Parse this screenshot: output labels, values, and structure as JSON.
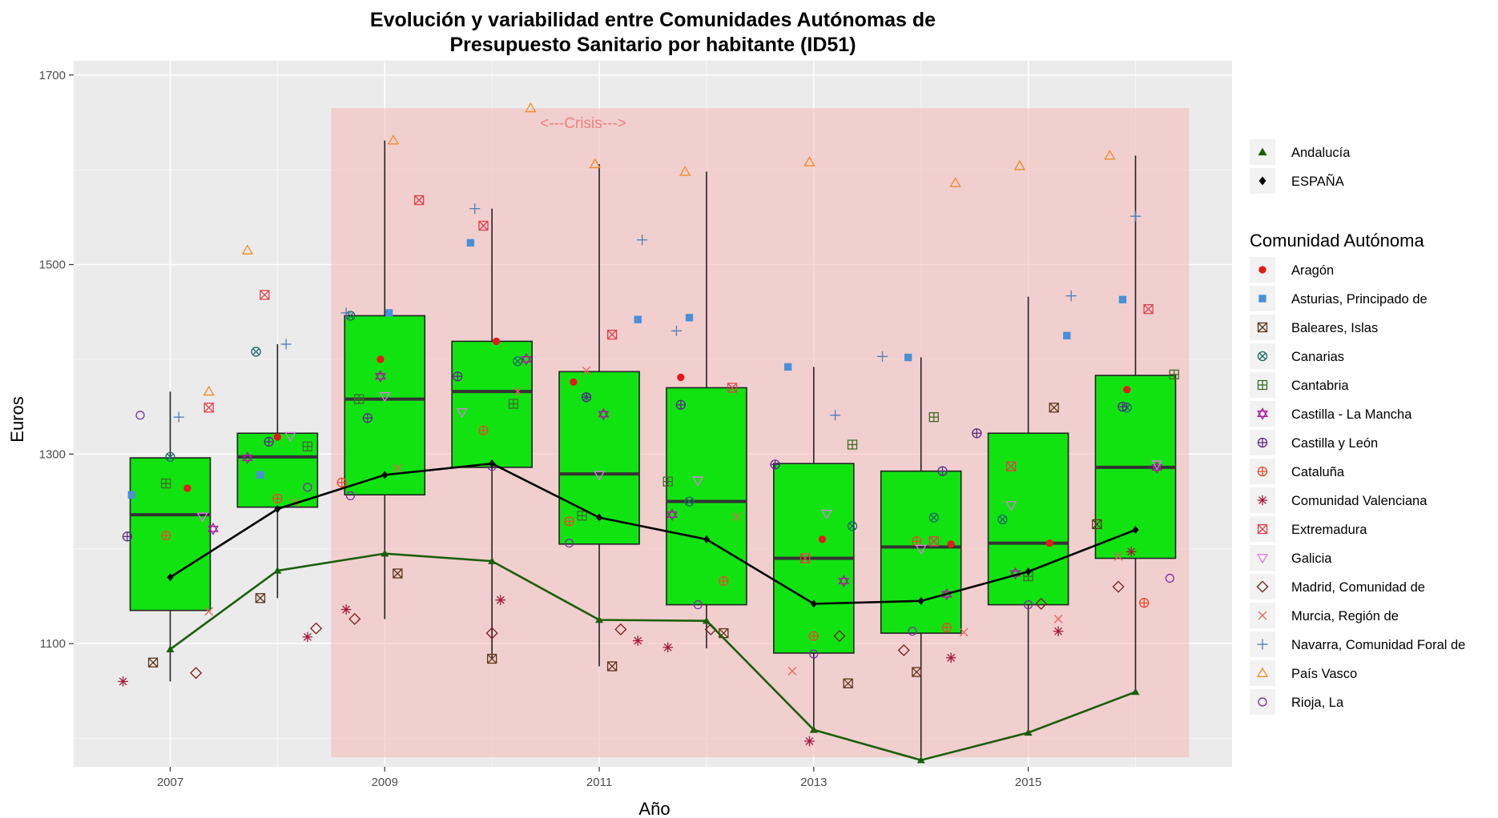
{
  "chart_data": {
    "type": "box",
    "title_lines": [
      "Evolución y variabilidad entre Comunidades Autónomas de",
      "Presupuesto Sanitario por habitante (ID51)"
    ],
    "xlabel": "Año",
    "ylabel": "Euros",
    "x_ticks": [
      2007,
      2009,
      2011,
      2013,
      2015
    ],
    "y_ticks": [
      1100,
      1300,
      1500,
      1700
    ],
    "ylim": [
      970,
      1715
    ],
    "xlim": [
      2006.1,
      2016.9
    ],
    "grid": true,
    "legend_position": "right",
    "colors": {
      "panel": "#ebebeb",
      "grid": "#ffffff",
      "box_fill": "#11e311",
      "crisis_fill": "#f5b8b8",
      "crisis_text": "#f08080",
      "andalucia": "#1b5e0b",
      "espana": "#000000"
    },
    "crisis_band": {
      "x_start": 2008.5,
      "x_end": 2016.5,
      "y_start": 980,
      "y_end": 1665,
      "label": "<---Crisis--->",
      "label_x": 2010.85,
      "label_y": 1650
    },
    "boxes": [
      {
        "year": 2007,
        "whisker_low": 1060,
        "q1": 1135,
        "median": 1236,
        "q3": 1296,
        "whisker_high": 1366
      },
      {
        "year": 2008,
        "whisker_low": 1148,
        "q1": 1244,
        "median": 1297,
        "q3": 1322,
        "whisker_high": 1416
      },
      {
        "year": 2009,
        "whisker_low": 1126,
        "q1": 1257,
        "median": 1358,
        "q3": 1446,
        "whisker_high": 1631
      },
      {
        "year": 2010,
        "whisker_low": 1084,
        "q1": 1286,
        "median": 1366,
        "q3": 1419,
        "whisker_high": 1559
      },
      {
        "year": 2011,
        "whisker_low": 1076,
        "q1": 1205,
        "median": 1279,
        "q3": 1387,
        "whisker_high": 1606
      },
      {
        "year": 2012,
        "whisker_low": 1095,
        "q1": 1141,
        "median": 1250,
        "q3": 1370,
        "whisker_high": 1598
      },
      {
        "year": 2013,
        "whisker_low": 1007,
        "q1": 1090,
        "median": 1190,
        "q3": 1290,
        "whisker_high": 1392
      },
      {
        "year": 2014,
        "whisker_low": 977,
        "q1": 1111,
        "median": 1202,
        "q3": 1282,
        "whisker_high": 1402
      },
      {
        "year": 2015,
        "whisker_low": 1007,
        "q1": 1141,
        "median": 1206,
        "q3": 1322,
        "whisker_high": 1466
      },
      {
        "year": 2016,
        "whisker_low": 1049,
        "q1": 1190,
        "median": 1286,
        "q3": 1383,
        "whisker_high": 1615
      }
    ],
    "lines": [
      {
        "name": "Andalucía",
        "marker": "triangle",
        "x": [
          2007,
          2008,
          2009,
          2010,
          2011,
          2012,
          2013,
          2014,
          2015,
          2016
        ],
        "y": [
          1094,
          1177,
          1195,
          1187,
          1125,
          1124,
          1009,
          977,
          1006,
          1049
        ]
      },
      {
        "name": "ESPAÑA",
        "marker": "diamond",
        "x": [
          2007,
          2008,
          2009,
          2010,
          2011,
          2012,
          2013,
          2014,
          2015,
          2016
        ],
        "y": [
          1170,
          1242,
          1278,
          1290,
          1233,
          1210,
          1142,
          1145,
          1176,
          1220
        ]
      }
    ],
    "legend_lines_items": [
      {
        "label": "Andalucía",
        "shape": "filled-triangle",
        "color": "#1b5e0b"
      },
      {
        "label": "ESPAÑA",
        "shape": "filled-diamond",
        "color": "#000000"
      }
    ],
    "legend_title": "Comunidad Autónoma",
    "series": [
      {
        "name": "Aragón",
        "color": "#e31a1c",
        "shape": "filled-circle",
        "x": [
          2007.16,
          2008.0,
          2008.96,
          2010.04,
          2010.76,
          2011.76,
          2013.08,
          2014.28,
          2015.2,
          2015.92
        ],
        "y": [
          1264,
          1318,
          1400,
          1419,
          1376,
          1381,
          1210,
          1205,
          1206,
          1368
        ]
      },
      {
        "name": "Asturias, Principado de",
        "color": "#4a90d9",
        "shape": "filled-square",
        "x": [
          2006.64,
          2007.84,
          2009.04,
          2009.8,
          2011.36,
          2011.84,
          2012.76,
          2013.88,
          2015.36,
          2015.88
        ],
        "y": [
          1257,
          1278,
          1449,
          1523,
          1442,
          1444,
          1392,
          1402,
          1425,
          1463
        ]
      },
      {
        "name": "Baleares, Islas",
        "color": "#5c3317",
        "shape": "square-x",
        "x": [
          2006.84,
          2007.84,
          2009.12,
          2010.0,
          2011.12,
          2012.16,
          2013.32,
          2013.96,
          2015.24,
          2015.64
        ],
        "y": [
          1080,
          1148,
          1174,
          1084,
          1076,
          1111,
          1058,
          1070,
          1349,
          1226
        ]
      },
      {
        "name": "Canarias",
        "color": "#1a6b63",
        "shape": "circle-x",
        "x": [
          2007.0,
          2007.8,
          2008.68,
          2010.24,
          2010.88,
          2011.84,
          2013.36,
          2014.12,
          2014.76,
          2015.92
        ],
        "y": [
          1297,
          1408,
          1446,
          1398,
          1360,
          1250,
          1224,
          1233,
          1231,
          1349
        ]
      },
      {
        "name": "Cantabria",
        "color": "#3d6b2a",
        "shape": "square-plus",
        "x": [
          2006.96,
          2008.28,
          2008.76,
          2010.2,
          2010.84,
          2011.64,
          2013.36,
          2014.12,
          2015.0,
          2016.36
        ],
        "y": [
          1269,
          1308,
          1358,
          1353,
          1235,
          1271,
          1310,
          1339,
          1171,
          1384
        ]
      },
      {
        "name": "Castilla - La Mancha",
        "color": "#a81c9c",
        "shape": "star-of-david",
        "x": [
          2007.4,
          2007.72,
          2008.96,
          2010.32,
          2011.04,
          2011.68,
          2013.28,
          2014.24,
          2014.88,
          2016.2
        ],
        "y": [
          1221,
          1296,
          1382,
          1400,
          1342,
          1236,
          1166,
          1152,
          1174,
          1286
        ]
      },
      {
        "name": "Castilla y León",
        "color": "#5b2a86",
        "shape": "circle-plus",
        "x": [
          2006.6,
          2007.92,
          2008.84,
          2009.68,
          2010.88,
          2011.76,
          2012.64,
          2014.2,
          2014.52,
          2015.88
        ],
        "y": [
          1213,
          1313,
          1338,
          1382,
          1360,
          1352,
          1289,
          1282,
          1322,
          1350
        ]
      },
      {
        "name": "Cataluña",
        "color": "#e8492a",
        "shape": "circle-plus",
        "x": [
          2006.96,
          2008.0,
          2008.6,
          2009.92,
          2010.72,
          2012.16,
          2013.0,
          2013.96,
          2014.24,
          2016.08
        ],
        "y": [
          1214,
          1253,
          1270,
          1325,
          1229,
          1166,
          1108,
          1208,
          1117,
          1143
        ]
      },
      {
        "name": "Comunidad Valenciana",
        "color": "#a7173f",
        "shape": "asterisk",
        "x": [
          2006.56,
          2008.28,
          2008.64,
          2010.08,
          2011.36,
          2011.64,
          2012.96,
          2014.28,
          2015.28,
          2015.96
        ],
        "y": [
          1060,
          1107,
          1136,
          1146,
          1103,
          1096,
          997,
          1085,
          1113,
          1197
        ]
      },
      {
        "name": "Extremadura",
        "color": "#e0404a",
        "shape": "square-x",
        "x": [
          2007.36,
          2007.88,
          2009.32,
          2009.92,
          2011.12,
          2012.24,
          2012.92,
          2014.12,
          2014.84,
          2016.12
        ],
        "y": [
          1349,
          1468,
          1568,
          1541,
          1426,
          1370,
          1190,
          1208,
          1287,
          1453
        ]
      },
      {
        "name": "Galicia",
        "color": "#e07ae6",
        "shape": "down-triangle",
        "x": [
          2007.3,
          2008.12,
          2009.0,
          2009.72,
          2011.0,
          2011.92,
          2013.12,
          2014.0,
          2014.84,
          2016.2
        ],
        "y": [
          1234,
          1319,
          1361,
          1344,
          1278,
          1272,
          1237,
          1200,
          1246,
          1289
        ]
      },
      {
        "name": "Madrid, Comunidad de",
        "color": "#7a1a1a",
        "shape": "diamond",
        "x": [
          2007.24,
          2008.36,
          2008.72,
          2010.0,
          2011.2,
          2012.04,
          2013.24,
          2013.84,
          2015.12,
          2015.84
        ],
        "y": [
          1069,
          1116,
          1126,
          1111,
          1115,
          1115,
          1108,
          1093,
          1142,
          1160
        ]
      },
      {
        "name": "Murcia, Región de",
        "color": "#e8605c",
        "shape": "x",
        "x": [
          2007.36,
          2008.16,
          2009.12,
          2010.24,
          2010.88,
          2012.28,
          2012.8,
          2014.4,
          2015.28,
          2015.84
        ],
        "y": [
          1134,
          1249,
          1285,
          1366,
          1388,
          1234,
          1071,
          1112,
          1126,
          1192
        ]
      },
      {
        "name": "Navarra, Comunidad Foral de",
        "color": "#4a7db8",
        "shape": "plus",
        "x": [
          2007.08,
          2008.08,
          2008.64,
          2009.84,
          2011.4,
          2011.72,
          2013.2,
          2013.64,
          2015.4,
          2016.0
        ],
        "y": [
          1339,
          1416,
          1449,
          1559,
          1526,
          1430,
          1341,
          1403,
          1467,
          1551
        ]
      },
      {
        "name": "País Vasco",
        "color": "#f08a24",
        "shape": "triangle",
        "x": [
          2007.36,
          2007.72,
          2009.08,
          2010.36,
          2010.96,
          2011.8,
          2012.96,
          2014.32,
          2014.92,
          2015.76
        ],
        "y": [
          1366,
          1515,
          1631,
          1665,
          1606,
          1598,
          1608,
          1586,
          1604,
          1615
        ]
      },
      {
        "name": "Rioja, La",
        "color": "#7a2fa3",
        "shape": "circle",
        "x": [
          2006.72,
          2008.28,
          2008.68,
          2010.0,
          2010.72,
          2011.92,
          2013.0,
          2013.92,
          2015.0,
          2016.32
        ],
        "y": [
          1341,
          1265,
          1256,
          1287,
          1206,
          1141,
          1089,
          1113,
          1141,
          1169
        ]
      }
    ]
  }
}
